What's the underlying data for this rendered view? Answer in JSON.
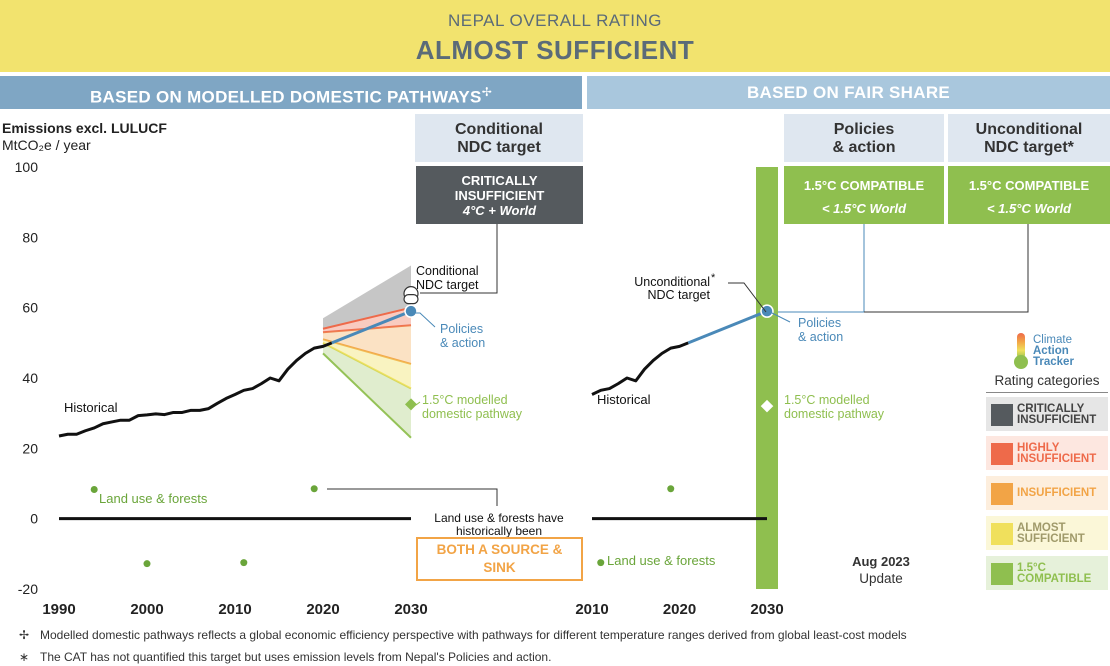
{
  "header": {
    "subtitle": "NEPAL OVERALL RATING",
    "rating": "ALMOST SUFFICIENT"
  },
  "sections": {
    "left": "BASED ON MODELLED DOMESTIC PATHWAYS",
    "left_mark": "✢",
    "right": "BASED ON FAIR SHARE"
  },
  "axis": {
    "title_line1": "Emissions excl. LULUCF",
    "title_line2": "MtCO₂e / year"
  },
  "columns": {
    "conditional": {
      "line1": "Conditional",
      "line2": "NDC target",
      "rating_line1": "CRITICALLY",
      "rating_line2": "INSUFFICIENT",
      "temp": "4°C + World",
      "color": "#555a5e"
    },
    "policies": {
      "line1": "Policies",
      "line2": "& action",
      "rating": "1.5°C COMPATIBLE",
      "temp": "< 1.5°C World",
      "color": "#8fbf4f"
    },
    "unconditional": {
      "line1": "Unconditional",
      "line2": "NDC target*",
      "rating": "1.5°C COMPATIBLE",
      "temp": "< 1.5°C World",
      "color": "#8fbf4f"
    }
  },
  "annotations": {
    "historical": "Historical",
    "conditional_target_l1": "Conditional",
    "conditional_target_l2": "NDC target",
    "policies_l1": "Policies",
    "policies_l2": "& action",
    "pathway_l1": "1.5°C modelled",
    "pathway_l2": "domestic pathway",
    "land_use": "Land use & forests",
    "lulucf_note_l1": "Land use & forests have",
    "lulucf_note_l2": "historically been",
    "source_sink_l1": "BOTH A SOURCE &",
    "source_sink_l2": "SINK",
    "uncond_target_l1": "Unconditional",
    "uncond_target_star": "*",
    "uncond_target_l2": "NDC target",
    "update_l1": "Aug 2023",
    "update_l2": "Update"
  },
  "logo": {
    "line1": "Climate",
    "line2": "Action",
    "line3": "Tracker"
  },
  "legend": {
    "title": "Rating categories",
    "items": [
      {
        "l1": "CRITICALLY",
        "l2": "INSUFFICIENT",
        "color": "#555a5e",
        "bg": "#e6e6e6",
        "text": "#444"
      },
      {
        "l1": "HIGHLY",
        "l2": "INSUFFICIENT",
        "color": "#ee6a4a",
        "bg": "#fde7e0",
        "text": "#ee6a4a"
      },
      {
        "l1": "INSUFFICIENT",
        "l2": "",
        "color": "#f2a446",
        "bg": "#fdeedd",
        "text": "#f2a446"
      },
      {
        "l1": "ALMOST",
        "l2": "SUFFICIENT",
        "color": "#f0e05c",
        "bg": "#fbf7d8",
        "text": "#a09a6a"
      },
      {
        "l1": "1.5°C",
        "l2": "COMPATIBLE",
        "color": "#8fbf4f",
        "bg": "#e6f1da",
        "text": "#8fbf4f"
      }
    ]
  },
  "footnotes": [
    {
      "mark": "✢",
      "text": "Modelled domestic pathways reflects a global economic efficiency perspective with pathways for different temperature ranges derived from global least-cost models"
    },
    {
      "mark": "∗",
      "text": "The CAT has not quantified this target but uses emission levels from Nepal's Policies and action."
    }
  ],
  "chart_data": [
    {
      "type": "line",
      "panel": "modelled domestic pathways",
      "ylim": [
        -20,
        100
      ],
      "yticks": [
        "100",
        "80",
        "60",
        "40",
        "20",
        "0",
        "-20"
      ],
      "xlim": [
        1990,
        2030
      ],
      "xticks": [
        "1990",
        "2000",
        "2010",
        "2020",
        "2030"
      ],
      "series": [
        {
          "name": "Historical",
          "color": "#111111",
          "x": [
            1990,
            1991,
            1992,
            1993,
            1994,
            1995,
            1996,
            1997,
            1998,
            1999,
            2000,
            2001,
            2002,
            2003,
            2004,
            2005,
            2006,
            2007,
            2008,
            2009,
            2010,
            2011,
            2012,
            2013,
            2014,
            2015,
            2016,
            2017,
            2018,
            2019,
            2020,
            2021
          ],
          "y": [
            23.5,
            24,
            24,
            25,
            25.8,
            27,
            27.5,
            28,
            28,
            29.3,
            29.5,
            29.8,
            29.6,
            30.2,
            30.2,
            30.8,
            30.8,
            31.3,
            32.8,
            34.2,
            35.3,
            36.5,
            37,
            38.4,
            40,
            39.2,
            42.5,
            45,
            47,
            48.5,
            49,
            50
          ]
        },
        {
          "name": "Policies & action",
          "color": "#4a89b8",
          "x": [
            2021,
            2030
          ],
          "y": [
            50,
            59
          ]
        }
      ],
      "bands": [
        {
          "rating": "CRITICALLY INSUFFICIENT",
          "color": "#b3b3b3",
          "x": [
            2020,
            2030
          ],
          "upper": [
            57,
            72
          ],
          "lower": [
            54,
            60
          ]
        },
        {
          "rating": "HIGHLY INSUFFICIENT",
          "color": "#ee6a4a",
          "x": [
            2020,
            2030
          ],
          "upper": [
            54,
            60
          ],
          "lower": [
            53,
            55
          ]
        },
        {
          "rating": "INSUFFICIENT",
          "color": "#f2a446",
          "x": [
            2020,
            2030
          ],
          "upper": [
            53,
            55
          ],
          "lower": [
            51,
            44
          ]
        },
        {
          "rating": "ALMOST SUFFICIENT",
          "color": "#f0e05c",
          "x": [
            2020,
            2030
          ],
          "upper": [
            51,
            44
          ],
          "lower": [
            50,
            37
          ]
        },
        {
          "rating": "1.5°C COMPATIBLE",
          "color": "#8fbf4f",
          "x": [
            2020,
            2030
          ],
          "upper": [
            50,
            37
          ],
          "lower": [
            47,
            23
          ]
        }
      ],
      "points": [
        {
          "name": "Conditional NDC target",
          "x": 2030,
          "y": 64,
          "style": "open"
        },
        {
          "name": "Policies & action",
          "x": 2030,
          "y": 59,
          "style": "filled"
        },
        {
          "name": "1.5°C modelled domestic pathway",
          "x": 2030,
          "y": 32.5,
          "style": "diamond"
        }
      ],
      "land_use_points": {
        "x": [
          1994,
          2000,
          2011,
          2019
        ],
        "y": [
          8.3,
          -12.8,
          -12.5,
          8.5
        ]
      },
      "zero_line": {
        "x": [
          1990,
          2030
        ],
        "y": 0
      }
    },
    {
      "type": "line",
      "panel": "fair share",
      "ylim": [
        -20,
        100
      ],
      "xlim": [
        2010,
        2030
      ],
      "xticks": [
        "2010",
        "2020",
        "2030"
      ],
      "series": [
        {
          "name": "Historical",
          "color": "#111111",
          "x": [
            2010,
            2011,
            2012,
            2013,
            2014,
            2015,
            2016,
            2017,
            2018,
            2019,
            2020,
            2021
          ],
          "y": [
            35.3,
            36.5,
            37,
            38.4,
            40,
            39.2,
            42.5,
            45,
            47,
            48.5,
            49,
            50
          ]
        },
        {
          "name": "Policies & action",
          "color": "#4a89b8",
          "x": [
            2021,
            2030
          ],
          "y": [
            50,
            59
          ]
        }
      ],
      "fair_share_band": {
        "rating": "1.5°C COMPATIBLE",
        "x": 2030,
        "range": [
          -20,
          100
        ],
        "color": "#8fbf4f"
      },
      "points": [
        {
          "name": "Policies & action",
          "x": 2030,
          "y": 59,
          "style": "filled"
        },
        {
          "name": "1.5°C modelled domestic pathway",
          "x": 2030,
          "y": 32,
          "style": "open-diamond"
        }
      ],
      "land_use_points": {
        "x": [
          2011,
          2019
        ],
        "y": [
          -12.5,
          8.5
        ]
      },
      "zero_line": {
        "x": [
          2010,
          2030
        ],
        "y": 0
      }
    }
  ]
}
